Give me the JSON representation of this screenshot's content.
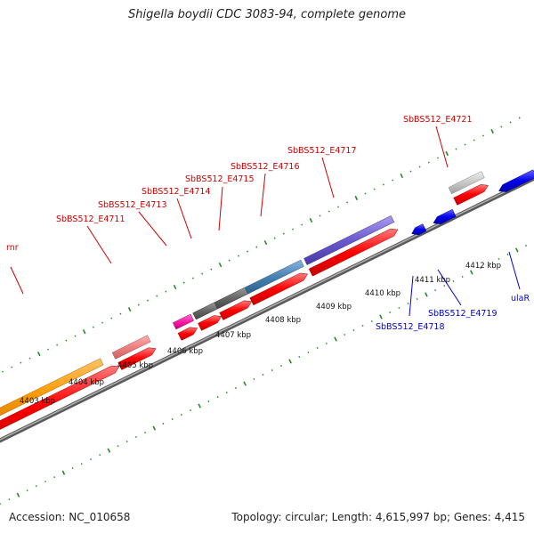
{
  "title": "Shigella boydii CDC 3083-94, complete genome",
  "footer": {
    "accession": "Accession: NC_010658",
    "summary": "Topology: circular; Length: 4,615,997 bp; Genes: 4,415"
  },
  "scale_labels": [
    "4403 kbp",
    "4404 kbp",
    "4405 kbp",
    "4406 kbp",
    "4407 kbp",
    "4408 kbp",
    "4409 kbp",
    "4410 kbp",
    "4411 kbp",
    "4412 kbp"
  ],
  "gene_labels_forward": [
    "rnr",
    "SbBS512_E4711",
    "SbBS512_E4713",
    "SbBS512_E4714",
    "SbBS512_E4715",
    "SbBS512_E4716",
    "SbBS512_E4717",
    "SbBS512_E4721"
  ],
  "gene_labels_reverse": [
    "SbBS512_E4718",
    "SbBS512_E4719",
    "ulaR"
  ],
  "colors": {
    "forward_label": "#cc0000",
    "reverse_label": "#0000cc",
    "cds_forward": "#ff0000",
    "cds_reverse": "#0000ee",
    "backbone": "#888888",
    "tick": "#228b22"
  }
}
